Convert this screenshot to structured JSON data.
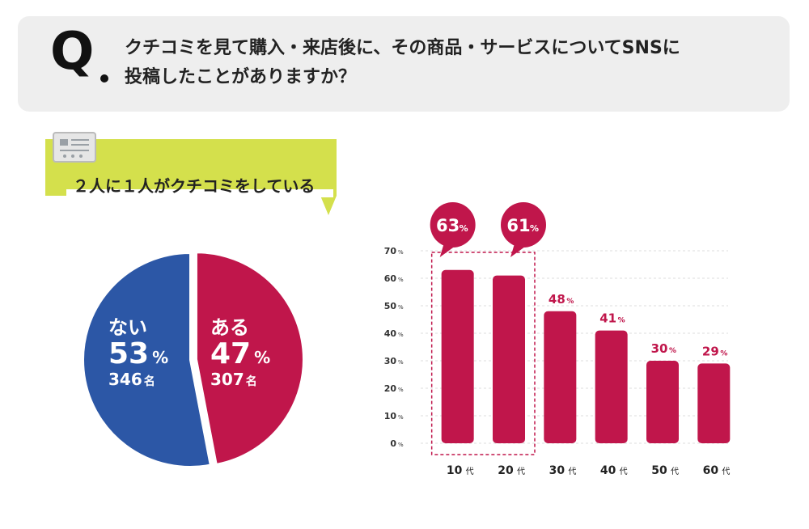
{
  "question": {
    "mark": "Q",
    "line1": "クチコミを見て購入・来店後に、その商品・サービスについてSNSに",
    "line2": "投稿したことがありますか？"
  },
  "banner": {
    "text": "２人に１人がクチコミをしている"
  },
  "colors": {
    "accent": "#c0164b",
    "blue": "#2c57a6",
    "lime": "#d4e04c",
    "grey_bg": "#eeeeee"
  },
  "chart_data": [
    {
      "type": "pie",
      "title": "",
      "slices": [
        {
          "label": "ある",
          "percent": 47,
          "percent_unit": "%",
          "count": 307,
          "count_unit": "名",
          "color": "#c0164b"
        },
        {
          "label": "ない",
          "percent": 53,
          "percent_unit": "%",
          "count": 346,
          "count_unit": "名",
          "color": "#2c57a6"
        }
      ]
    },
    {
      "type": "bar",
      "categories": [
        "10代",
        "20代",
        "30代",
        "40代",
        "50代",
        "60代"
      ],
      "category_numbers": [
        "10",
        "20",
        "30",
        "40",
        "50",
        "60"
      ],
      "category_suffix": "代",
      "values": [
        63,
        61,
        48,
        41,
        30,
        29
      ],
      "value_unit": "%",
      "highlighted": [
        "10代",
        "20代"
      ],
      "yticks": [
        0,
        10,
        20,
        30,
        40,
        50,
        60,
        70
      ],
      "ylim": [
        0,
        70
      ],
      "color": "#c0164b"
    }
  ]
}
